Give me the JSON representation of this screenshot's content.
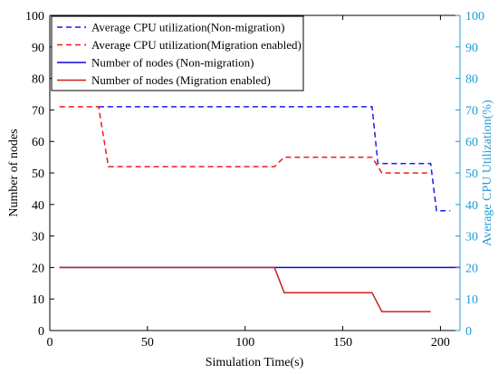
{
  "chart_data": {
    "type": "line",
    "title": "",
    "xlabel": "Simulation Time(s)",
    "ylabel": "Number of nodes",
    "y2label": "Average CPU Utilization(%)",
    "xlim": [
      0,
      210
    ],
    "ylim": [
      0,
      100
    ],
    "y2lim": [
      0,
      100
    ],
    "xticks": [
      0,
      50,
      100,
      150,
      200
    ],
    "yticks": [
      0,
      10,
      20,
      30,
      40,
      50,
      60,
      70,
      80,
      90,
      100
    ],
    "y2ticks": [
      0,
      10,
      20,
      30,
      40,
      50,
      60,
      70,
      80,
      90,
      100
    ],
    "grid": false,
    "legend_position": "top-left",
    "colors": {
      "left_axis": "#000000",
      "right_axis": "#1f9bd7"
    },
    "series": [
      {
        "name": "Average CPU utilization(Non-migration)",
        "axis": "right",
        "color": "#1a1aee",
        "dash": true,
        "x": [
          25,
          165,
          168,
          195,
          198,
          205
        ],
        "y": [
          71,
          71,
          53,
          53,
          38,
          38
        ]
      },
      {
        "name": "Average CPU utilization(Migration enabled)",
        "axis": "right",
        "color": "#ee1a1a",
        "dash": true,
        "x": [
          5,
          25,
          30,
          115,
          120,
          165,
          170,
          195
        ],
        "y": [
          71,
          71,
          52,
          52,
          55,
          55,
          50,
          50
        ]
      },
      {
        "name": "Number of nodes (Non-migration)",
        "axis": "left",
        "color": "#0a0ad8",
        "dash": false,
        "x": [
          5,
          210
        ],
        "y": [
          20,
          20
        ]
      },
      {
        "name": "Number of nodes (Migration enabled)",
        "axis": "left",
        "color": "#cc1f1f",
        "dash": false,
        "x": [
          5,
          115,
          120,
          165,
          170,
          195
        ],
        "y": [
          20,
          20,
          12,
          12,
          6,
          6
        ]
      }
    ]
  }
}
